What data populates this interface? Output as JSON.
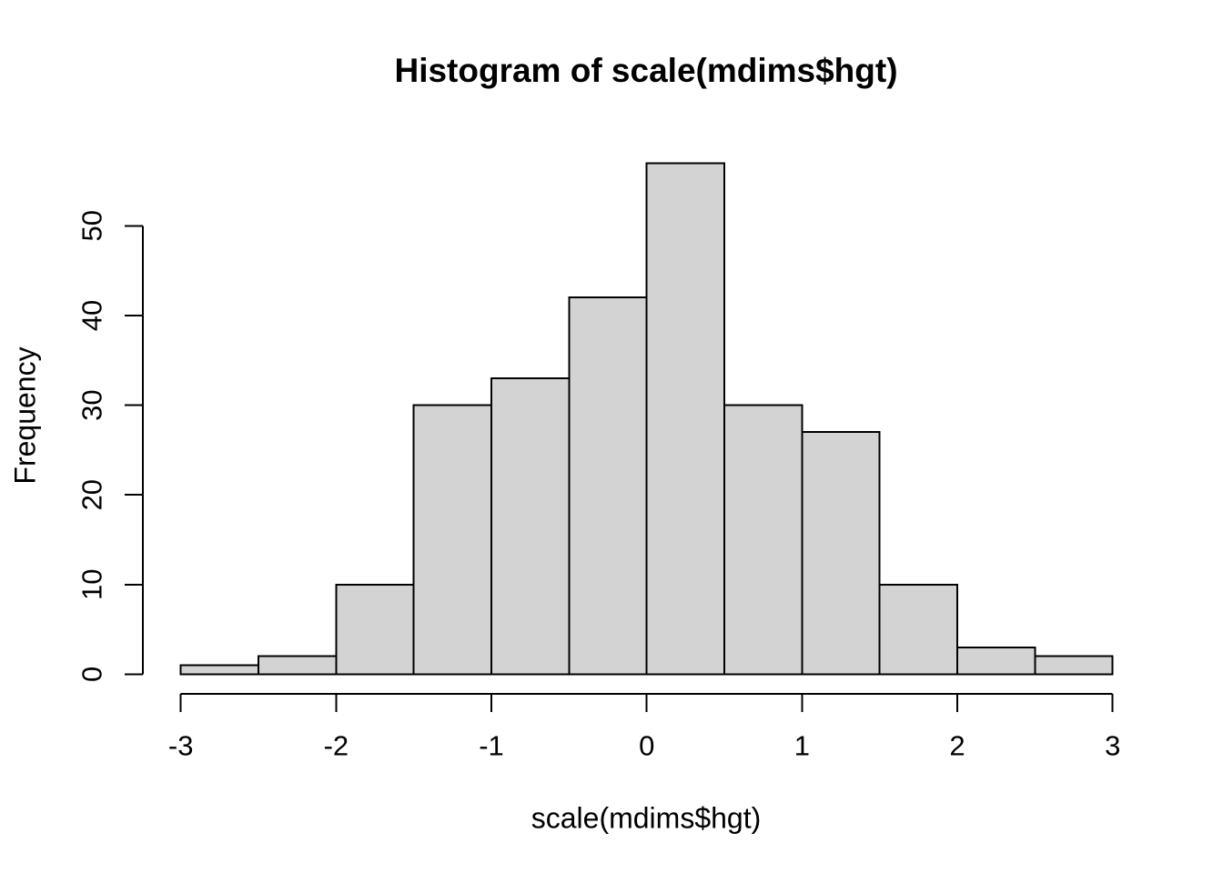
{
  "chart_data": {
    "type": "bar",
    "subtype": "histogram",
    "title": "Histogram of scale(mdims$hgt)",
    "xlabel": "scale(mdims$hgt)",
    "ylabel": "Frequency",
    "breaks": [
      -3,
      -2.5,
      -2,
      -1.5,
      -1,
      -0.5,
      0,
      0.5,
      1,
      1.5,
      2,
      2.5,
      3
    ],
    "counts": [
      1,
      2,
      10,
      30,
      33,
      42,
      57,
      30,
      27,
      10,
      3,
      2
    ],
    "x_tick_labels": [
      "-3",
      "-2",
      "-1",
      "0",
      "1",
      "2",
      "3"
    ],
    "x_tick_values": [
      -3,
      -2,
      -1,
      0,
      1,
      2,
      3
    ],
    "y_tick_labels": [
      "0",
      "10",
      "20",
      "30",
      "40",
      "50"
    ],
    "y_tick_values": [
      0,
      10,
      20,
      30,
      40,
      50
    ],
    "xlim": [
      -3,
      3
    ],
    "ylim": [
      0,
      57
    ],
    "grid": false,
    "legend_position": "none",
    "bar_fill": "#d3d3d3",
    "bar_stroke": "#000000",
    "axis_color": "#000000",
    "background": "#ffffff"
  }
}
